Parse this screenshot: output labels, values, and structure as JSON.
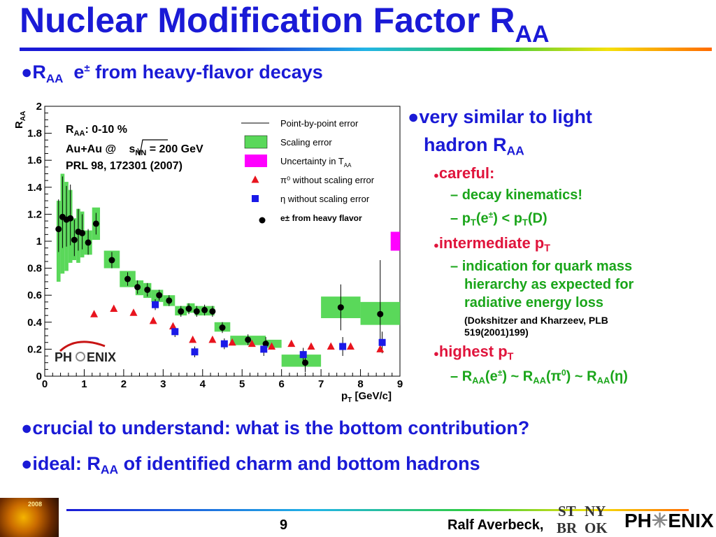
{
  "title": {
    "main": "Nuclear Modification Factor R",
    "sub": "AA"
  },
  "subtitle": {
    "bullet": "●",
    "r": "R",
    "rsub": "AA",
    "e": "e",
    "esup": "±",
    "rest": " from heavy-flavor decays"
  },
  "right_panel": {
    "b1_bullet": "●",
    "b1_line1": "very similar to light",
    "b1_line2": "hadron R",
    "b1_sub": "AA",
    "careful_bullet": "●",
    "careful": "careful:",
    "dash": "–",
    "decay": "decay kinematics!",
    "pt_a": "p",
    "pt_a_sub": "T",
    "pt_b": "(e",
    "pt_b_sup": "±",
    "pt_c": ") < p",
    "pt_c_sub": "T",
    "pt_d": "(D)",
    "inter_bullet": "●",
    "inter": "intermediate p",
    "inter_sub": "T",
    "ind1": "indication for quark mass",
    "ind2": "hierarchy as expected for",
    "ind3": "radiative energy loss",
    "ref1": "(Dokshitzer and Kharzeev, PLB",
    "ref2": "519(2001)199)",
    "high_bullet": "●",
    "high": "highest p",
    "high_sub": "T",
    "raa1": "R",
    "raa1_sub": "AA",
    "raa1_rest": "(e",
    "raa1_sup": "±",
    "raa1_end": ") ~ R",
    "raa2_sub": "AA",
    "raa2_rest": "(π",
    "raa2_sup": "0",
    "raa2_end": ") ~ R",
    "raa3_sub": "AA",
    "raa3_rest": "(η)"
  },
  "bottom_bullets": {
    "bullet": "●",
    "crucial": "crucial to understand: what is the bottom contribution?",
    "ideal_a": "ideal: R",
    "ideal_sub": "AA",
    "ideal_b": " of identified charm and bottom hadrons"
  },
  "footer": {
    "page": "9",
    "author": "Ralf Averbeck,",
    "conf_year": "2008",
    "stony_1": "ST",
    "stony_2": "NY",
    "stony_3": "BR",
    "stony_4": "OK",
    "phenix_1": "PH",
    "phenix_2": "ENIX"
  },
  "colors": {
    "title_blue": "#1a1ad6",
    "scaling_green": "#5ad85a",
    "uncert_magenta": "#ff00ff",
    "pi0_red": "#e8141e",
    "eta_blue": "#1a1ae8"
  },
  "chart_data": {
    "type": "scatter",
    "title": "",
    "xlabel": "p_T [GeV/c]",
    "ylabel": "R_AA",
    "xlim": [
      0,
      9
    ],
    "ylim": [
      0,
      2
    ],
    "xticks": [
      "0",
      "1",
      "2",
      "3",
      "4",
      "5",
      "6",
      "7",
      "8",
      "9"
    ],
    "yticks": [
      "0",
      "0.2",
      "0.4",
      "0.6",
      "0.8",
      "1",
      "1.2",
      "1.4",
      "1.6",
      "1.8",
      "2"
    ],
    "grid": false,
    "legend_position": "top-right",
    "annotation": {
      "line1a": "R",
      "line1sub": "AA",
      "line1b": ": 0-10 %",
      "line2a": "Au+Au @ ",
      "line2s": "s",
      "line2sub": "NN",
      "line2b": " = 200 GeV",
      "line3": "PRL 98, 172301 (2007)"
    },
    "experiment_logo": "PHENIX",
    "legend": [
      {
        "label": "Point-by-point error",
        "marker": "line"
      },
      {
        "label": "Scaling error",
        "marker": "green-box"
      },
      {
        "label": "Uncertainty in T",
        "sub": "AA",
        "marker": "magenta-box"
      },
      {
        "label": "π⁰ without scaling error",
        "marker": "red-triangle"
      },
      {
        "label": "η without scaling error",
        "marker": "blue-square"
      },
      {
        "label": "e± from heavy flavor",
        "marker": "black-circle"
      }
    ],
    "taa_uncertainty": {
      "x": 8.8,
      "y": 1.0,
      "half_height": 0.07
    },
    "series": [
      {
        "name": "e± from heavy flavor",
        "marker": "circle",
        "points": [
          [
            0.35,
            1.09,
            0.17,
            0.22
          ],
          [
            0.45,
            1.18,
            0.23,
            0.3
          ],
          [
            0.55,
            1.16,
            0.2,
            0.25
          ],
          [
            0.65,
            1.17,
            0.2,
            0.25
          ],
          [
            0.75,
            1.01,
            0.12,
            0.15
          ],
          [
            0.85,
            1.07,
            0.14,
            0.17
          ],
          [
            0.95,
            1.06,
            0.12,
            0.14
          ],
          [
            1.1,
            0.99,
            0.09,
            0.1
          ],
          [
            1.3,
            1.13,
            0.08,
            0.08
          ],
          [
            1.7,
            0.86,
            0.06,
            0.06
          ],
          [
            2.1,
            0.72,
            0.05,
            0.05
          ],
          [
            2.35,
            0.66,
            0.05,
            0.05
          ],
          [
            2.6,
            0.64,
            0.05,
            0.05
          ],
          [
            2.9,
            0.6,
            0.04,
            0.04
          ],
          [
            3.15,
            0.56,
            0.04,
            0.04
          ],
          [
            3.45,
            0.48,
            0.04,
            0.04
          ],
          [
            3.65,
            0.5,
            0.04,
            0.04
          ],
          [
            3.85,
            0.48,
            0.04,
            0.04
          ],
          [
            4.05,
            0.49,
            0.04,
            0.04
          ],
          [
            4.25,
            0.48,
            0.04,
            0.04
          ],
          [
            4.5,
            0.36,
            0.04,
            0.04
          ],
          [
            5.15,
            0.27,
            0.04,
            0.04
          ],
          [
            5.6,
            0.24,
            0.05,
            0.05
          ],
          [
            6.6,
            0.1,
            0.07,
            0.07
          ],
          [
            7.5,
            0.51,
            0.17,
            0.17
          ],
          [
            8.5,
            0.46,
            0.25,
            0.4
          ]
        ],
        "scaling_boxes": [
          [
            0.3,
            0.4,
            0.7,
            1.3
          ],
          [
            0.4,
            0.5,
            0.76,
            1.5
          ],
          [
            0.5,
            0.6,
            0.78,
            1.44
          ],
          [
            0.6,
            0.7,
            0.84,
            1.38
          ],
          [
            0.7,
            0.8,
            0.86,
            1.17
          ],
          [
            0.8,
            0.9,
            0.84,
            1.24
          ],
          [
            0.9,
            1.0,
            0.88,
            1.22
          ],
          [
            1.0,
            1.2,
            0.9,
            1.08
          ],
          [
            1.2,
            1.4,
            1.01,
            1.25
          ],
          [
            1.5,
            1.9,
            0.8,
            0.93
          ],
          [
            1.9,
            2.3,
            0.66,
            0.78
          ],
          [
            2.3,
            2.5,
            0.6,
            0.71
          ],
          [
            2.5,
            2.7,
            0.58,
            0.69
          ],
          [
            2.7,
            3.0,
            0.55,
            0.64
          ],
          [
            3.0,
            3.3,
            0.52,
            0.6
          ],
          [
            3.3,
            3.6,
            0.45,
            0.52
          ],
          [
            3.6,
            3.8,
            0.47,
            0.54
          ],
          [
            3.8,
            4.0,
            0.45,
            0.52
          ],
          [
            4.0,
            4.2,
            0.45,
            0.52
          ],
          [
            4.2,
            4.3,
            0.45,
            0.52
          ],
          [
            4.3,
            4.7,
            0.33,
            0.4
          ],
          [
            4.7,
            5.6,
            0.23,
            0.3
          ],
          [
            5.6,
            6.0,
            0.21,
            0.27
          ],
          [
            6.0,
            7.0,
            0.07,
            0.16
          ],
          [
            7.0,
            8.0,
            0.43,
            0.59
          ],
          [
            8.0,
            9.0,
            0.38,
            0.55
          ]
        ]
      },
      {
        "name": "π⁰ without scaling error",
        "marker": "triangle",
        "points": [
          [
            1.25,
            0.46
          ],
          [
            1.75,
            0.5
          ],
          [
            2.25,
            0.47
          ],
          [
            2.75,
            0.41
          ],
          [
            3.25,
            0.37
          ],
          [
            3.75,
            0.27
          ],
          [
            4.25,
            0.27
          ],
          [
            4.75,
            0.25
          ],
          [
            5.25,
            0.24
          ],
          [
            5.75,
            0.22
          ],
          [
            6.25,
            0.24
          ],
          [
            6.75,
            0.22
          ],
          [
            7.25,
            0.22
          ],
          [
            7.75,
            0.22
          ],
          [
            8.5,
            0.2
          ]
        ]
      },
      {
        "name": "η without scaling error",
        "marker": "square",
        "points": [
          [
            2.8,
            0.53,
            0.04
          ],
          [
            3.3,
            0.33,
            0.04
          ],
          [
            3.8,
            0.18,
            0.04
          ],
          [
            4.55,
            0.24,
            0.04
          ],
          [
            5.55,
            0.2,
            0.05
          ],
          [
            6.55,
            0.16,
            0.05
          ],
          [
            7.55,
            0.22,
            0.07
          ],
          [
            8.55,
            0.25,
            0.08
          ]
        ]
      }
    ]
  }
}
